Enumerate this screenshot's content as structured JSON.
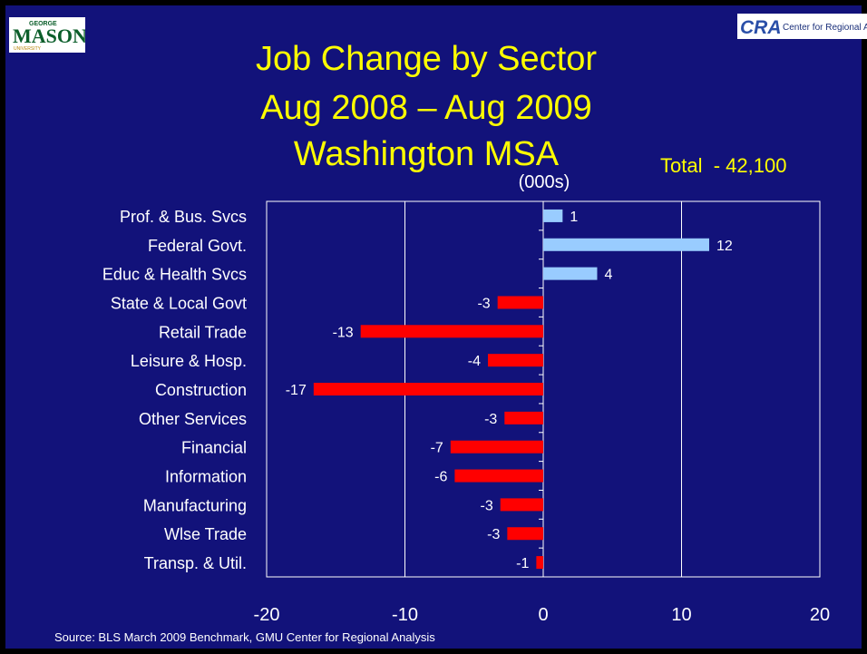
{
  "logos": {
    "left_text": "MASON",
    "left_small": "GEORGE",
    "left_sub": "UNIVERSITY",
    "right_text": "CRA",
    "right_sub": "Center for Regional Analy"
  },
  "title": {
    "line1": "Job Change by Sector",
    "line2": "Aug 2008 – Aug 2009",
    "line3": "Washington MSA"
  },
  "units": "(000s)",
  "total": "Total  - 42,100",
  "source": "Source: BLS March 2009 Benchmark, GMU Center for Regional Analysis",
  "colors": {
    "background": "#12127a",
    "positive": "#99ccff",
    "negative": "#ff0000",
    "title": "#ffff00",
    "text": "#ffffff"
  },
  "chart_data": {
    "type": "bar",
    "orientation": "horizontal",
    "categories": [
      "Prof. & Bus. Svcs",
      "Federal Govt.",
      "Educ & Health Svcs",
      "State & Local Govt",
      "Retail Trade",
      "Leisure & Hosp.",
      "Construction",
      "Other Services",
      "Financial",
      "Information",
      "Manufacturing",
      "Wlse Trade",
      "Transp. & Util."
    ],
    "values": [
      1.4,
      12,
      3.9,
      -3.3,
      -13.2,
      -4,
      -16.6,
      -2.8,
      -6.7,
      -6.4,
      -3.1,
      -2.6,
      -0.5
    ],
    "data_labels": [
      "1",
      "12",
      "4",
      "-3",
      "-13",
      "-4",
      "-17",
      "-3",
      "-7",
      "-6",
      "-3",
      "-3",
      "-1"
    ],
    "xlim": [
      -20,
      20
    ],
    "xticks": [
      "-20",
      "-10",
      "0",
      "10",
      "20"
    ],
    "grid": true
  }
}
